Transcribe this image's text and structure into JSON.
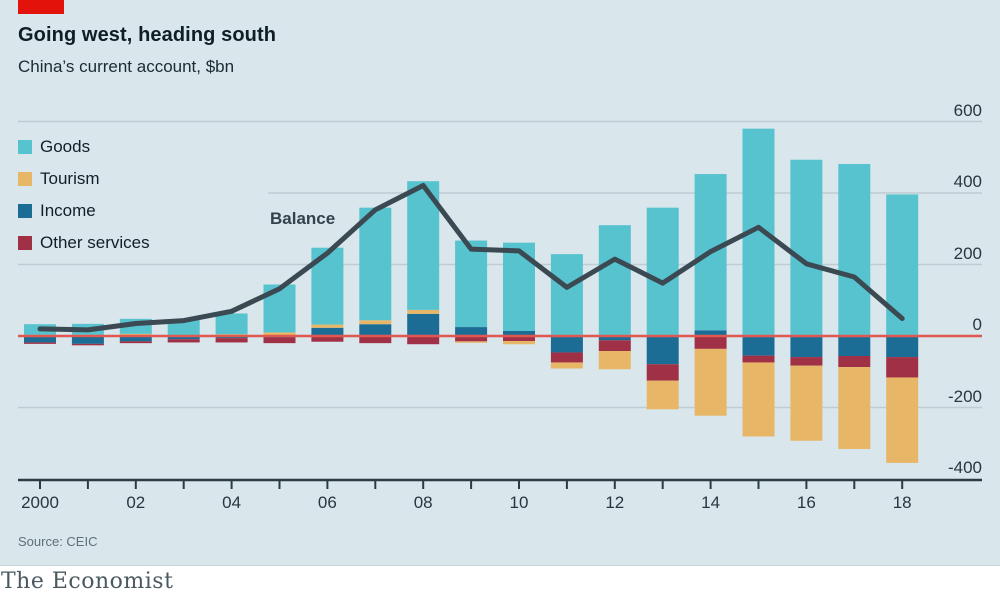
{
  "header": {
    "title": "Going west, heading south",
    "subtitle": "China’s current account, $bn"
  },
  "footer": {
    "source": "Source: CEIC",
    "brand": "The Economist"
  },
  "colors": {
    "background": "#d9e6ec",
    "red_tab": "#e3120b",
    "gridline": "#bfccd3",
    "axis": "#2c3a44",
    "zero_line": "#e0584f",
    "balance_line": "#3b4953"
  },
  "chart_data": {
    "type": "bar",
    "subtype": "stacked-bar-with-line",
    "unit": "$bn",
    "ylim": [
      -400,
      600
    ],
    "y_ticks": [
      600,
      400,
      200,
      0,
      -200,
      -400
    ],
    "years": [
      2000,
      2001,
      2002,
      2003,
      2004,
      2005,
      2006,
      2007,
      2008,
      2009,
      2010,
      2011,
      2012,
      2013,
      2014,
      2015,
      2016,
      2017,
      2018
    ],
    "x_tick_labels": [
      "2000",
      "02",
      "04",
      "06",
      "08",
      "10",
      "12",
      "14",
      "16",
      "18"
    ],
    "series": [
      {
        "name": "Goods",
        "color": "#57c3cf",
        "values": [
          30,
          31,
          42,
          45,
          58,
          134,
          215,
          315,
          360,
          242,
          247,
          229,
          310,
          359,
          437,
          580,
          493,
          481,
          396
        ]
      },
      {
        "name": "Tourism",
        "color": "#e7b767",
        "values": [
          3,
          3,
          6,
          2,
          5,
          10,
          9,
          11,
          11,
          -4,
          -9,
          -17,
          -51,
          -80,
          -187,
          -207,
          -210,
          -229,
          -239
        ]
      },
      {
        "name": "Income",
        "color": "#1c6d96",
        "values": [
          -18,
          -22,
          -15,
          -9,
          -6,
          -4,
          23,
          33,
          62,
          25,
          14,
          -46,
          -12,
          -79,
          16,
          -55,
          -59,
          -56,
          -59
        ]
      },
      {
        "name": "Other services",
        "color": "#a03045",
        "values": [
          -4,
          -4,
          -5,
          -9,
          -12,
          -16,
          -16,
          -20,
          -23,
          -15,
          -14,
          -28,
          -30,
          -46,
          -36,
          -19,
          -24,
          -31,
          -57
        ]
      }
    ],
    "line": {
      "name": "Balance",
      "color": "#3b4953",
      "values": [
        20,
        17,
        35,
        43,
        69,
        132,
        232,
        353,
        421,
        243,
        238,
        136,
        215,
        148,
        236,
        304,
        202,
        165,
        49
      ]
    },
    "legend_position": "top-left",
    "grid": "horizontal-only"
  }
}
